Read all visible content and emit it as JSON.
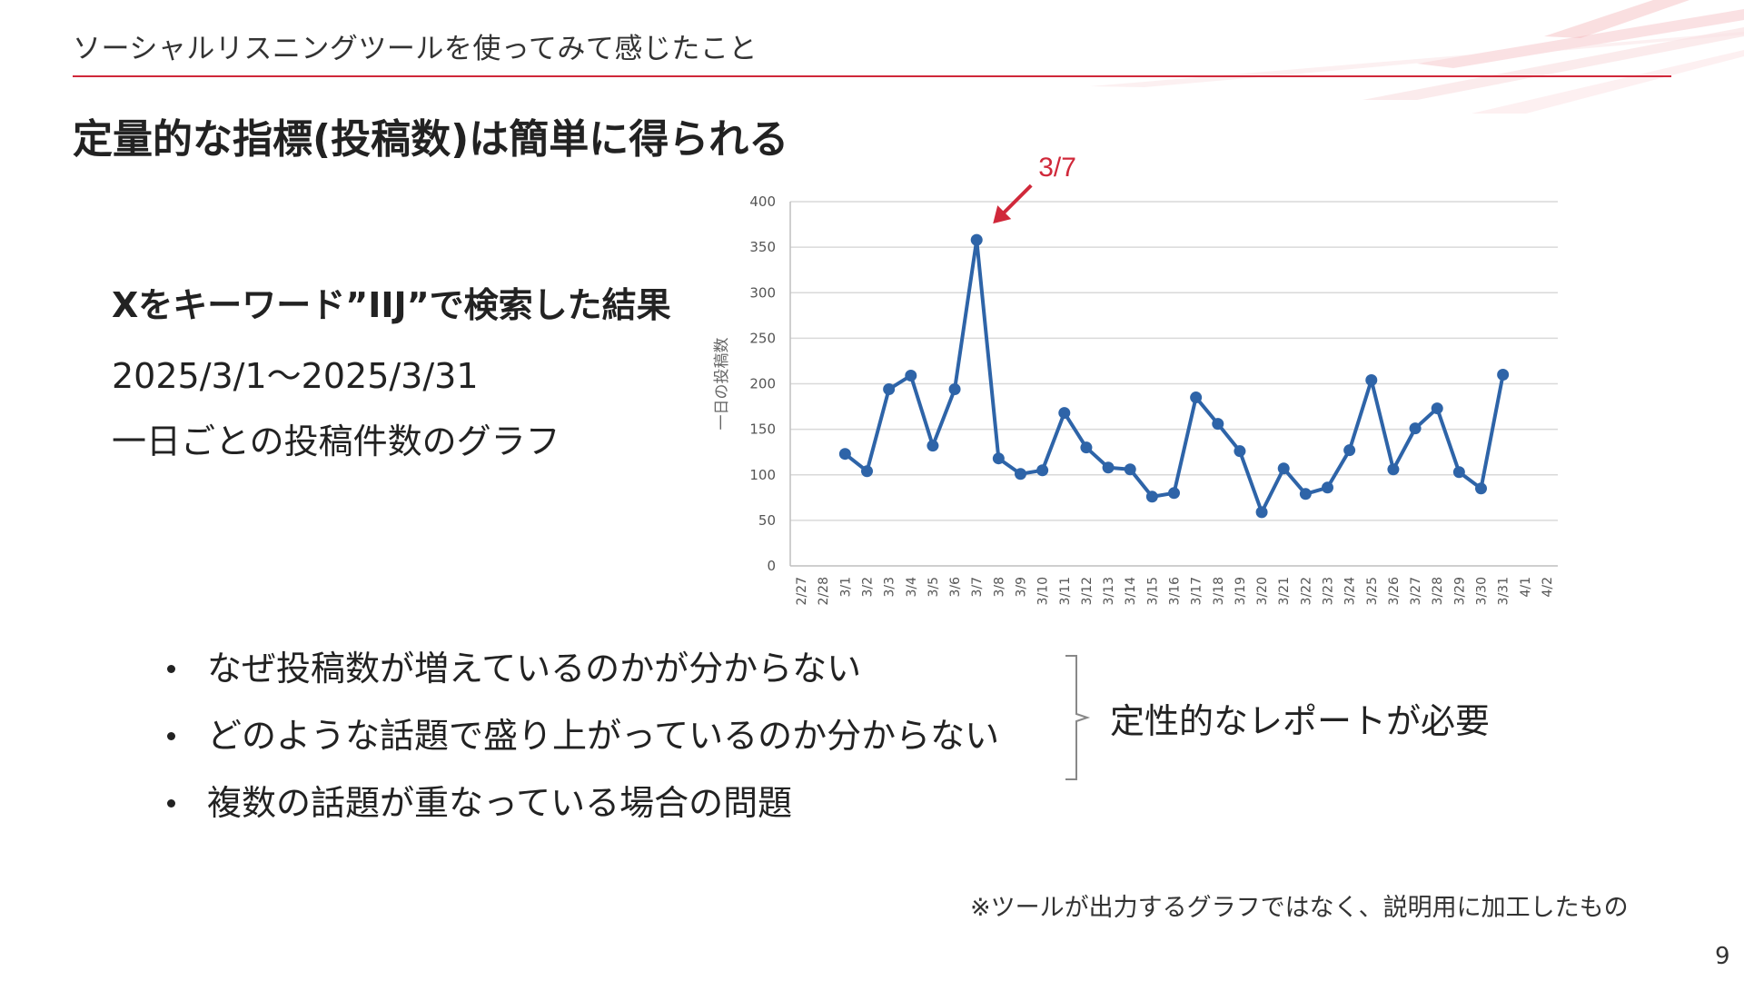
{
  "header": {
    "section_title": "ソーシャルリスニングツールを使ってみて感じたこと"
  },
  "main": {
    "heading": "定量的な指標(投稿数)は簡単に得られる"
  },
  "left": {
    "search_title": "Xをキーワード”IIJ”で検索した結果",
    "date_range": "2025/3/1～2025/3/31",
    "graph_desc": "一日ごとの投稿件数のグラフ"
  },
  "chart_annotation": {
    "label": "3/7",
    "color": "#d0283a"
  },
  "chart_data": {
    "type": "line",
    "ylabel": "一日の投稿数",
    "xlabel": "",
    "ylim": [
      0,
      400
    ],
    "yticks": [
      0,
      50,
      100,
      150,
      200,
      250,
      300,
      350,
      400
    ],
    "categories": [
      "2/27",
      "2/28",
      "3/1",
      "3/2",
      "3/3",
      "3/4",
      "3/5",
      "3/6",
      "3/7",
      "3/8",
      "3/9",
      "3/10",
      "3/11",
      "3/12",
      "3/13",
      "3/14",
      "3/15",
      "3/16",
      "3/17",
      "3/18",
      "3/19",
      "3/20",
      "3/21",
      "3/22",
      "3/23",
      "3/24",
      "3/25",
      "3/26",
      "3/27",
      "3/28",
      "3/29",
      "3/30",
      "3/31",
      "4/1",
      "4/2"
    ],
    "series": [
      {
        "color": "#2e64a8",
        "values": [
          null,
          null,
          123,
          104,
          194,
          209,
          132,
          194,
          358,
          118,
          101,
          105,
          168,
          130,
          108,
          106,
          76,
          80,
          185,
          156,
          126,
          59,
          107,
          79,
          86,
          127,
          204,
          106,
          151,
          173,
          103,
          85,
          210,
          null,
          null
        ]
      }
    ],
    "grid": true
  },
  "bullets": [
    "なぜ投稿数が増えているのかが分からない",
    "どのような話題で盛り上がっているのか分からない",
    "複数の話題が重なっている場合の問題"
  ],
  "conclusion": "定性的なレポートが必要",
  "footnote": "※ツールが出力するグラフではなく、説明用に加工したもの",
  "page_number": "9",
  "colors": {
    "accent": "#d0283a",
    "series": "#2e64a8",
    "grid": "#d9d9d9"
  }
}
